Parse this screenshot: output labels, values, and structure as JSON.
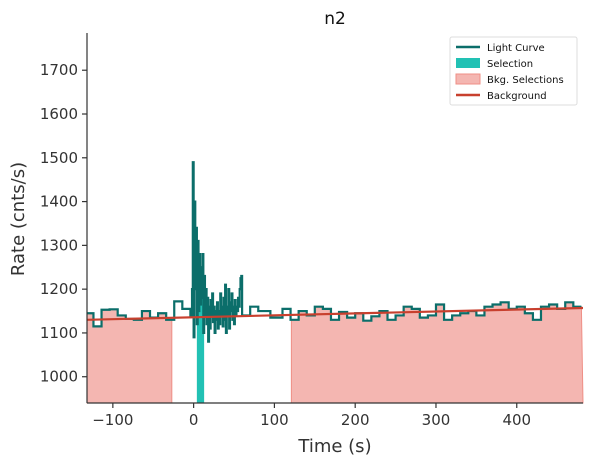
{
  "chart_data": {
    "type": "line",
    "title": "n2",
    "xlabel": "Time (s)",
    "ylabel": "Rate (cnts/s)",
    "xlim": [
      -132,
      482
    ],
    "ylim": [
      940,
      1785
    ],
    "xticks": [
      -100,
      0,
      100,
      200,
      300,
      400
    ],
    "yticks": [
      1000,
      1100,
      1200,
      1300,
      1400,
      1500,
      1600,
      1700
    ],
    "grid": false,
    "legend_position": "top-right",
    "colors": {
      "light_curve": "#0b6e6a",
      "selection": "#22c1b4",
      "bkg_selection": "#f4b6b1",
      "bkg_selection_edge": "#ef8f86",
      "background": "#c8402e",
      "axis": "#333333"
    },
    "legend": [
      {
        "label": "Light Curve",
        "kind": "line",
        "color_key": "light_curve"
      },
      {
        "label": "Selection",
        "kind": "patch",
        "color_key": "selection"
      },
      {
        "label": "Bkg. Selections",
        "kind": "patch",
        "color_key": "bkg_selection"
      },
      {
        "label": "Background",
        "kind": "line",
        "color_key": "background"
      }
    ],
    "bkg_selections": [
      [
        -132,
        -27
      ],
      [
        121,
        482
      ]
    ],
    "selection": [
      4,
      13
    ],
    "background_line": {
      "x": [
        -132,
        482
      ],
      "y": [
        1130,
        1157
      ]
    },
    "series": [
      {
        "name": "Light Curve",
        "step_edges": [
          -132,
          -124,
          -114,
          -104,
          -94,
          -84,
          -74,
          -64,
          -54,
          -44,
          -34,
          -24,
          -14,
          -4,
          -2,
          -1,
          0,
          1,
          2,
          3,
          4,
          5,
          6,
          7,
          8,
          9,
          10,
          11,
          12,
          13,
          14,
          15,
          16,
          17,
          18,
          19,
          20,
          21,
          22,
          23,
          24,
          25,
          26,
          27,
          28,
          29,
          30,
          31,
          32,
          33,
          34,
          35,
          36,
          37,
          38,
          39,
          40,
          41,
          42,
          43,
          44,
          45,
          46,
          47,
          48,
          49,
          50,
          51,
          52,
          53,
          54,
          55,
          56,
          57,
          58,
          59,
          60,
          70,
          80,
          95,
          110,
          120,
          130,
          140,
          150,
          160,
          170,
          180,
          190,
          200,
          210,
          220,
          230,
          240,
          250,
          260,
          270,
          280,
          290,
          300,
          310,
          320,
          330,
          340,
          350,
          360,
          370,
          380,
          390,
          400,
          410,
          420,
          430,
          440,
          450,
          460,
          470,
          480
        ],
        "y": [
          1145,
          1115,
          1153,
          1154,
          1140,
          1132,
          1130,
          1150,
          1135,
          1145,
          1130,
          1172,
          1155,
          1140,
          1200,
          1490,
          1090,
          1400,
          1200,
          1340,
          1120,
          1310,
          1150,
          1280,
          1165,
          1250,
          1180,
          1280,
          1100,
          1230,
          1140,
          1200,
          1120,
          1180,
          1080,
          1160,
          1110,
          1175,
          1140,
          1190,
          1125,
          1160,
          1100,
          1150,
          1130,
          1170,
          1110,
          1150,
          1120,
          1190,
          1140,
          1160,
          1115,
          1180,
          1130,
          1210,
          1100,
          1160,
          1140,
          1200,
          1110,
          1170,
          1150,
          1190,
          1130,
          1160,
          1120,
          1175,
          1140,
          1160,
          1150,
          1180,
          1160,
          1200,
          1225,
          1230,
          1140,
          1160,
          1150,
          1135,
          1155,
          1130,
          1150,
          1140,
          1160,
          1155,
          1130,
          1148,
          1135,
          1145,
          1128,
          1138,
          1150,
          1130,
          1140,
          1160,
          1155,
          1135,
          1140,
          1165,
          1130,
          1140,
          1145,
          1150,
          1140,
          1160,
          1165,
          1170,
          1155,
          1160,
          1145,
          1130,
          1160,
          1165,
          1155,
          1170,
          1160
        ]
      }
    ]
  }
}
